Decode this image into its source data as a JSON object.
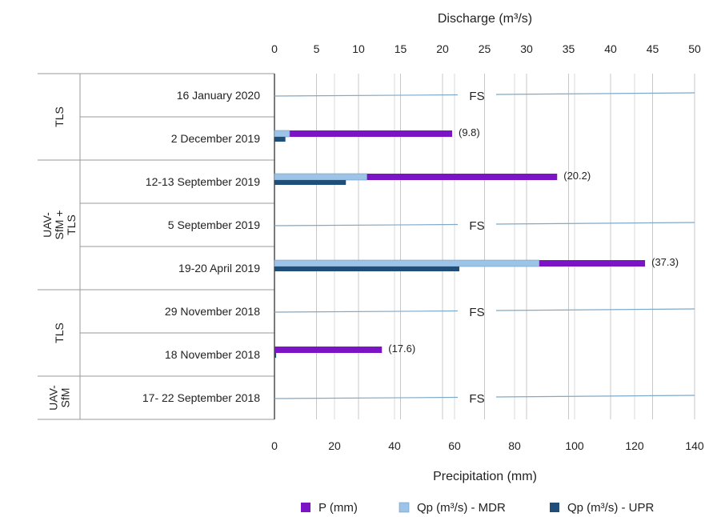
{
  "chart_data": {
    "type": "bar",
    "orientation": "horizontal",
    "top_axis": {
      "title": "Discharge (m³/s)",
      "range": [
        0,
        50
      ],
      "ticks": [
        0,
        5,
        10,
        15,
        20,
        25,
        30,
        35,
        40,
        45,
        50
      ]
    },
    "bottom_axis": {
      "title": "Precipitation (mm)",
      "range": [
        0,
        140
      ],
      "ticks": [
        0,
        20,
        40,
        60,
        80,
        100,
        120,
        140
      ]
    },
    "categories": [
      "16 January 2020",
      "2 December 2019",
      "12-13 September 2019",
      "5 September 2019",
      "19-20 April 2019",
      "29 November 2018",
      "18 November 2018",
      "17- 22 September 2018"
    ],
    "groups": [
      {
        "label_lines": [
          "TLS"
        ],
        "rows": [
          0,
          1
        ]
      },
      {
        "label_lines": [
          "UAV-",
          "SfM +",
          "TLS"
        ],
        "rows": [
          2,
          3,
          4
        ]
      },
      {
        "label_lines": [
          "TLS"
        ],
        "rows": [
          5,
          6
        ]
      },
      {
        "label_lines": [
          "UAV-",
          "SfM"
        ],
        "rows": [
          7,
          7
        ]
      }
    ],
    "series": [
      {
        "name": "P (mm)",
        "color": "#7B14C4",
        "axis": "bottom",
        "values": [
          null,
          59.2,
          94.2,
          null,
          123.5,
          null,
          35.8,
          null
        ]
      },
      {
        "name": "Qp (m³/s) - MDR",
        "color": "#9DC3E6",
        "axis": "top",
        "values": [
          null,
          1.8,
          11.0,
          null,
          31.5,
          null,
          null,
          null
        ]
      },
      {
        "name": "Qp (m³/s) - UPR",
        "color": "#1F4E79",
        "axis": "top",
        "values": [
          null,
          1.3,
          8.5,
          null,
          22.0,
          null,
          0.2,
          null
        ]
      }
    ],
    "data_labels": [
      "",
      "(9.8)",
      "(20.2)",
      "",
      "(37.3)",
      "",
      "(17.6)",
      ""
    ],
    "fs_label": "FS",
    "fs_rows": [
      0,
      3,
      5,
      7
    ],
    "legend_position": "bottom-right",
    "grid": true
  }
}
